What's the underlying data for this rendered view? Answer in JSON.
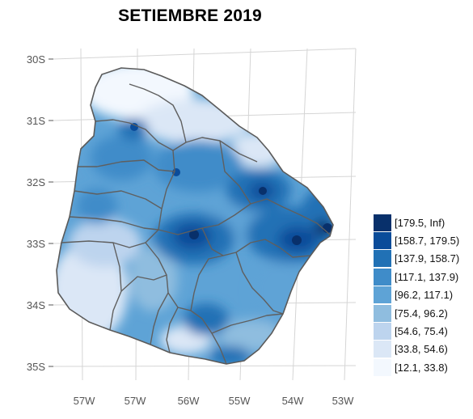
{
  "title": "SETIEMBRE 2019",
  "axes": {
    "y_ticks": [
      "30S",
      "31S",
      "32S",
      "33S",
      "34S",
      "35S"
    ],
    "x_ticks": [
      "57W",
      "57W",
      "56W",
      "55W",
      "54W",
      "53W"
    ]
  },
  "legend": [
    {
      "label": "[179.5, Inf)",
      "color": "#08306b"
    },
    {
      "label": "[158.7, 179.5)",
      "color": "#0a4c9a"
    },
    {
      "label": "[137.9, 158.7)",
      "color": "#2171b5"
    },
    {
      "label": "[117.1, 137.9)",
      "color": "#3f8cc9"
    },
    {
      "label": "[96.2, 117.1)",
      "color": "#5ea3d6"
    },
    {
      "label": "[75.4, 96.2)",
      "color": "#8fbddf"
    },
    {
      "label": "[54.6, 75.4)",
      "color": "#bdd4ee"
    },
    {
      "label": "[33.8, 54.6)",
      "color": "#dbe7f6"
    },
    {
      "label": "[12.1, 33.8)",
      "color": "#f3f8fe"
    }
  ]
}
